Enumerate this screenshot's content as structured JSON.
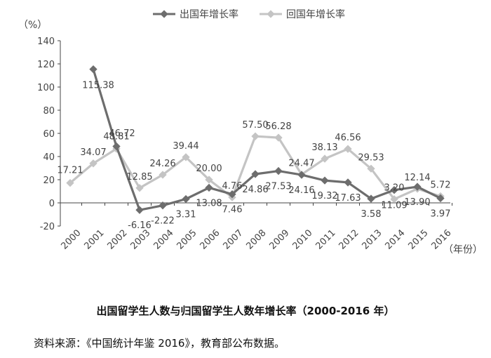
{
  "chart_data": {
    "type": "line",
    "x": [
      "2000",
      "2001",
      "2002",
      "2003",
      "2004",
      "2005",
      "2006",
      "2007",
      "2008",
      "2009",
      "2010",
      "2011",
      "2012",
      "2013",
      "2014",
      "2015",
      "2016"
    ],
    "series": [
      {
        "name": "出国年增长率",
        "color": "#6d6d6d",
        "values": [
          null,
          115.38,
          48.81,
          -6.16,
          -2.22,
          3.31,
          13.08,
          7.46,
          24.86,
          27.53,
          24.16,
          19.32,
          17.63,
          3.58,
          11.09,
          13.9,
          3.97
        ]
      },
      {
        "name": "回国年增长率",
        "color": "#c4c4c4",
        "values": [
          17.21,
          34.07,
          46.72,
          12.85,
          24.26,
          39.44,
          20.0,
          4.76,
          57.5,
          56.28,
          24.47,
          38.13,
          46.56,
          29.53,
          3.2,
          12.14,
          5.72
        ]
      }
    ],
    "y_unit": "（%）",
    "x_unit": "（年份）",
    "ylim": [
      -20,
      140
    ],
    "yticks": [
      -20,
      0,
      20,
      40,
      60,
      80,
      100,
      120,
      140
    ],
    "legend_position": "top"
  },
  "title": "出国留学生人数与归国留学生人数年增长率（2000-2016 年）",
  "source": "资料来源：《中国统计年鉴 2016》，教育部公布数据。"
}
